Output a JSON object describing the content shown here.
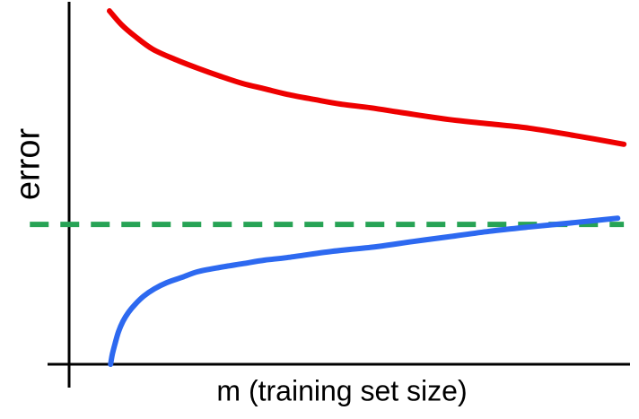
{
  "figure": {
    "description": "Learning-curve style sketch: two error curves versus training set size with a dashed asymptote line",
    "background_color": "#ffffff"
  },
  "colors": {
    "axis": "#000000",
    "red_curve": "#ee0000",
    "blue_curve": "#2d69f0",
    "green_dashed": "#27a355",
    "label_text": "#000000"
  },
  "chart_data": {
    "type": "line",
    "title": "",
    "xlabel": "m (training set size)",
    "ylabel": "error",
    "grid": false,
    "legend": "none",
    "x_axis": {
      "range": [
        0,
        1
      ],
      "tick_labels": "none"
    },
    "y_axis": {
      "range": [
        0,
        1
      ],
      "tick_labels": "none"
    },
    "series": [
      {
        "id": "green-dashed-asymptote-line",
        "style": "dashed",
        "color": "#27a355",
        "points": [
          [
            -0.07,
            0.384
          ],
          [
            0.989,
            0.384
          ]
        ]
      },
      {
        "id": "red-curve",
        "style": "solid",
        "color": "#ee0000",
        "points": [
          [
            0.072,
            0.97
          ],
          [
            0.093,
            0.933
          ],
          [
            0.117,
            0.901
          ],
          [
            0.149,
            0.865
          ],
          [
            0.189,
            0.837
          ],
          [
            0.229,
            0.813
          ],
          [
            0.269,
            0.791
          ],
          [
            0.309,
            0.771
          ],
          [
            0.349,
            0.756
          ],
          [
            0.389,
            0.741
          ],
          [
            0.437,
            0.727
          ],
          [
            0.485,
            0.714
          ],
          [
            0.538,
            0.704
          ],
          [
            0.597,
            0.69
          ],
          [
            0.677,
            0.672
          ],
          [
            0.749,
            0.66
          ],
          [
            0.821,
            0.648
          ],
          [
            0.901,
            0.628
          ],
          [
            0.989,
            0.604
          ]
        ]
      },
      {
        "id": "blue-curve",
        "style": "solid",
        "color": "#2d69f0",
        "points": [
          [
            0.074,
            0.0
          ],
          [
            0.077,
            0.027
          ],
          [
            0.082,
            0.057
          ],
          [
            0.088,
            0.089
          ],
          [
            0.096,
            0.118
          ],
          [
            0.106,
            0.143
          ],
          [
            0.118,
            0.165
          ],
          [
            0.133,
            0.187
          ],
          [
            0.152,
            0.207
          ],
          [
            0.174,
            0.224
          ],
          [
            0.202,
            0.239
          ],
          [
            0.229,
            0.254
          ],
          [
            0.269,
            0.266
          ],
          [
            0.309,
            0.276
          ],
          [
            0.349,
            0.286
          ],
          [
            0.389,
            0.293
          ],
          [
            0.469,
            0.31
          ],
          [
            0.549,
            0.323
          ],
          [
            0.613,
            0.337
          ],
          [
            0.677,
            0.35
          ],
          [
            0.749,
            0.365
          ],
          [
            0.821,
            0.377
          ],
          [
            0.901,
            0.389
          ],
          [
            0.978,
            0.401
          ]
        ]
      }
    ]
  }
}
